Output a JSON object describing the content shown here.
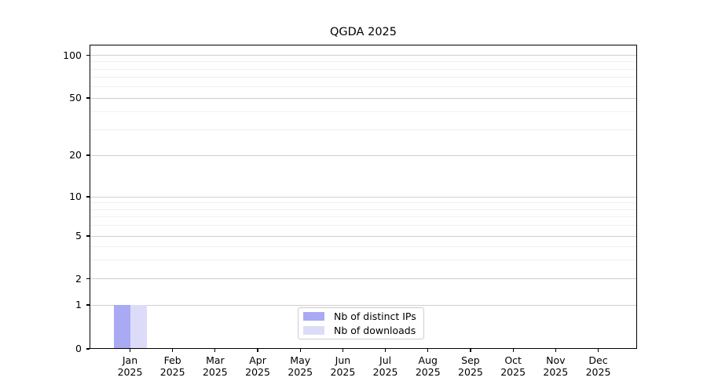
{
  "chart_data": {
    "type": "bar",
    "title": "QGDA 2025",
    "xlabel": "",
    "ylabel": "",
    "yscale": "symlog-like",
    "yticks": [
      0,
      1,
      2,
      5,
      10,
      20,
      50,
      100
    ],
    "ylim": [
      0,
      118
    ],
    "grid": true,
    "legend_position": "lower center",
    "categories": [
      "Jan",
      "Feb",
      "Mar",
      "Apr",
      "May",
      "Jun",
      "Jul",
      "Aug",
      "Sep",
      "Oct",
      "Nov",
      "Dec"
    ],
    "year": "2025",
    "series": [
      {
        "name": "Nb of distinct IPs",
        "color": "#a9a9f4",
        "values": [
          1,
          0,
          0,
          0,
          0,
          0,
          0,
          0,
          0,
          0,
          0,
          0
        ]
      },
      {
        "name": "Nb of downloads",
        "color": "#dcdcf8",
        "values": [
          1,
          0,
          0,
          0,
          0,
          0,
          0,
          0,
          0,
          0,
          0,
          0
        ]
      }
    ],
    "colors": {
      "grid_major": "#cfcfcf",
      "grid_minor": "#f0f0f0",
      "axis": "#000000",
      "legend_border": "#cccccc",
      "background": "#ffffff"
    }
  }
}
